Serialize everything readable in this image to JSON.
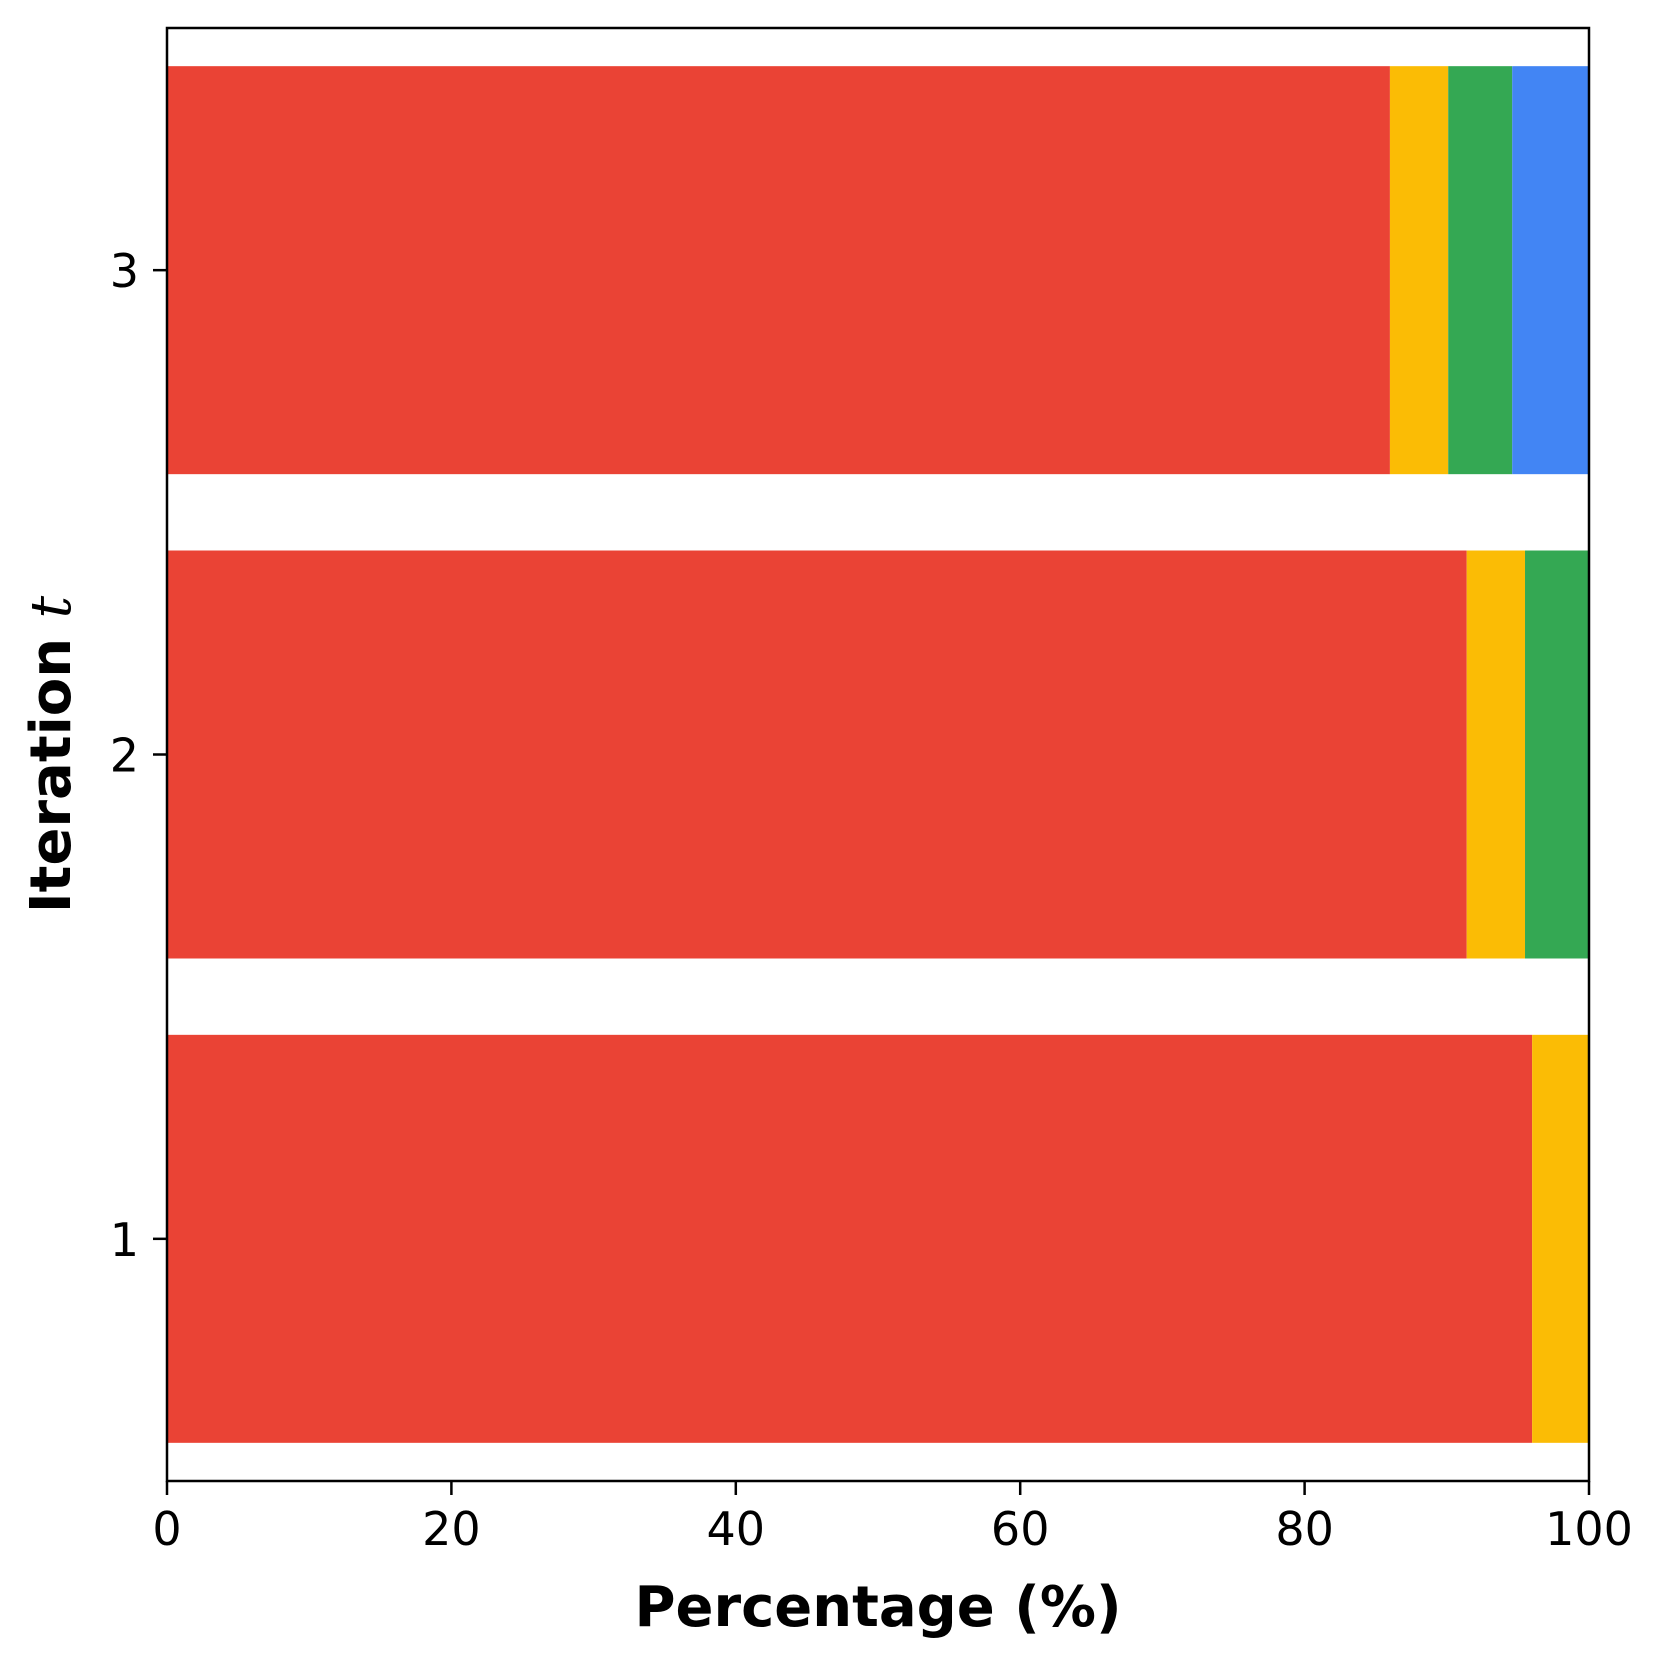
{
  "chart_data": {
    "type": "bar",
    "orientation": "horizontal",
    "stacked": true,
    "xlabel": "Percentage (%)",
    "ylabel": "Iteration",
    "ylabel_variable": "t",
    "xlim": [
      0,
      100
    ],
    "x_ticks": [
      "0",
      "20",
      "40",
      "60",
      "80",
      "100"
    ],
    "categories": [
      "1",
      "2",
      "3"
    ],
    "series": [
      {
        "color": "#EA4335",
        "values": [
          96.0,
          91.4,
          86.0
        ]
      },
      {
        "color": "#FBBC05",
        "values": [
          4.0,
          4.1,
          4.1
        ]
      },
      {
        "color": "#34A853",
        "values": [
          0.0,
          4.5,
          4.5
        ]
      },
      {
        "color": "#4285F4",
        "values": [
          0.0,
          0.0,
          5.4
        ]
      }
    ],
    "grid": false,
    "legend": false
  }
}
